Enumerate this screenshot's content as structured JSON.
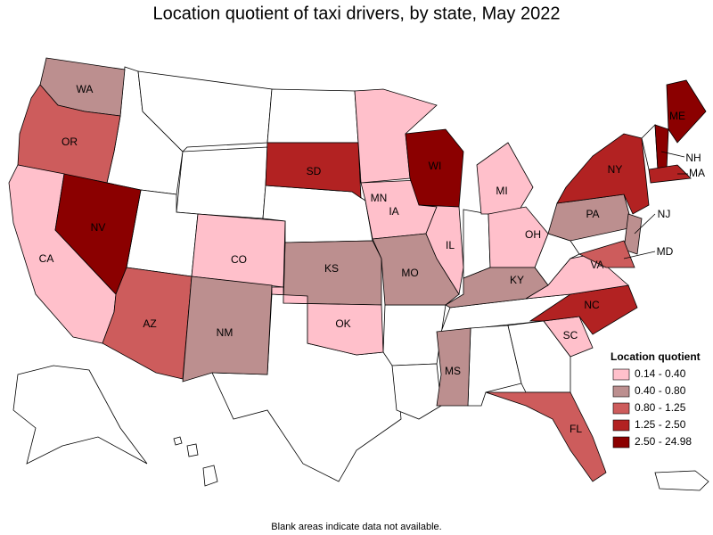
{
  "title": "Location quotient of taxi drivers, by state, May 2022",
  "footnote": "Blank areas indicate data not available.",
  "legend": {
    "title": "Location quotient",
    "items": [
      {
        "label": "0.14 - 0.40",
        "color": "#ffc0cb"
      },
      {
        "label": "0.40 - 0.80",
        "color": "#bc8f8f"
      },
      {
        "label": "0.80 - 1.25",
        "color": "#cd5c5c"
      },
      {
        "label": "1.25 - 2.50",
        "color": "#b22222"
      },
      {
        "label": "2.50 - 24.98",
        "color": "#8b0000"
      }
    ]
  },
  "states": [
    {
      "abbr": "WA",
      "class": 1
    },
    {
      "abbr": "OR",
      "class": 2
    },
    {
      "abbr": "CA",
      "class": 0
    },
    {
      "abbr": "NV",
      "class": 4
    },
    {
      "abbr": "AZ",
      "class": 2
    },
    {
      "abbr": "CO",
      "class": 0
    },
    {
      "abbr": "NM",
      "class": 1
    },
    {
      "abbr": "SD",
      "class": 3
    },
    {
      "abbr": "KS",
      "class": 1
    },
    {
      "abbr": "OK",
      "class": 0
    },
    {
      "abbr": "MN",
      "class": 0
    },
    {
      "abbr": "IA",
      "class": 0
    },
    {
      "abbr": "MO",
      "class": 1
    },
    {
      "abbr": "WI",
      "class": 4
    },
    {
      "abbr": "IL",
      "class": 0
    },
    {
      "abbr": "MI",
      "class": 0
    },
    {
      "abbr": "OH",
      "class": 0
    },
    {
      "abbr": "KY",
      "class": 1
    },
    {
      "abbr": "MS",
      "class": 1
    },
    {
      "abbr": "FL",
      "class": 2
    },
    {
      "abbr": "SC",
      "class": 0
    },
    {
      "abbr": "NC",
      "class": 3
    },
    {
      "abbr": "VA",
      "class": 0
    },
    {
      "abbr": "PA",
      "class": 1
    },
    {
      "abbr": "NY",
      "class": 3
    },
    {
      "abbr": "ME",
      "class": 4
    },
    {
      "abbr": "NH",
      "class": 4
    },
    {
      "abbr": "MA",
      "class": 3
    },
    {
      "abbr": "NJ",
      "class": 1
    },
    {
      "abbr": "MD",
      "class": 2
    }
  ]
}
